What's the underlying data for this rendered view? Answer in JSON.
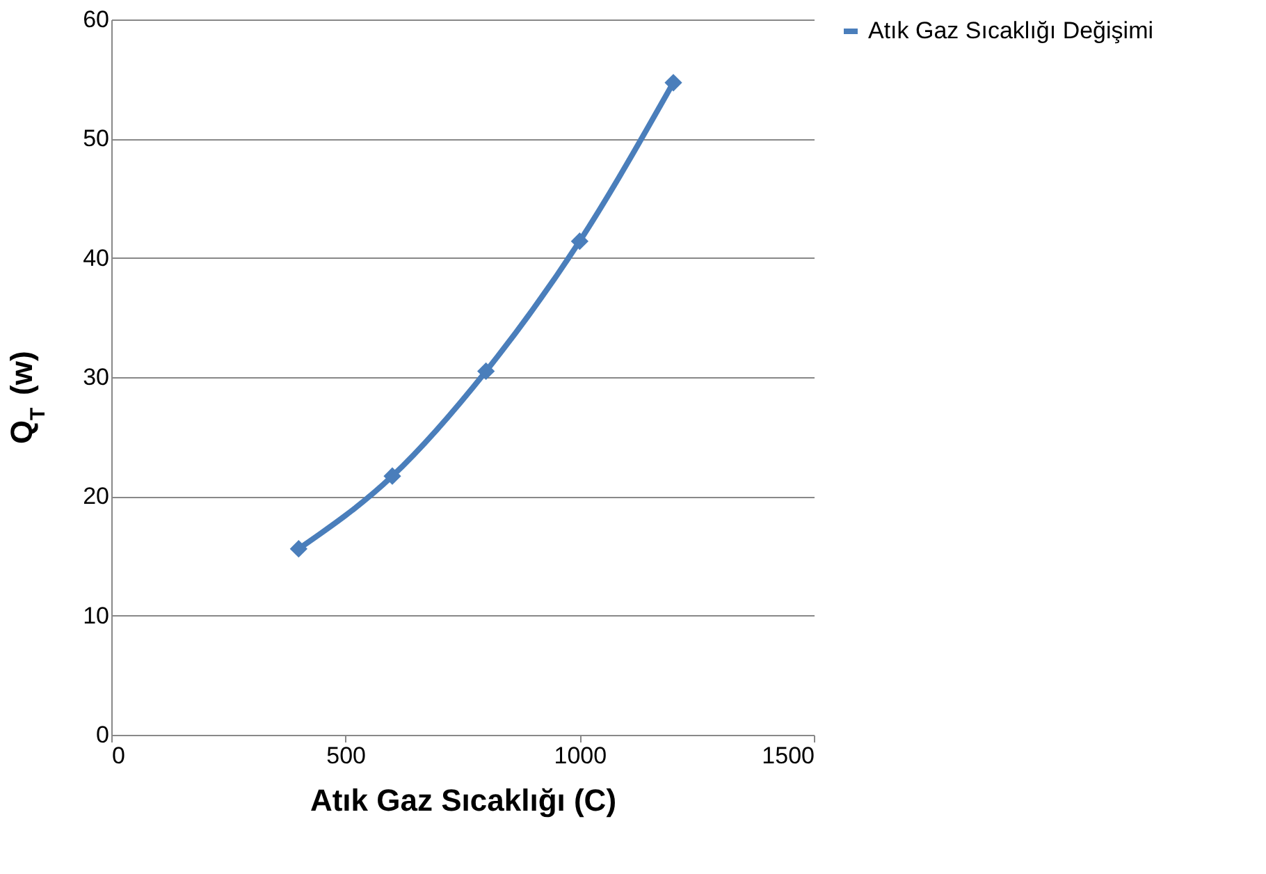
{
  "chart_data": {
    "type": "line",
    "xlabel": "Atık Gaz Sıcaklığı (C)",
    "ylabel": "Q$_{T}$ (w)",
    "x": [
      400,
      600,
      800,
      1000,
      1200
    ],
    "series": [
      {
        "name": "Atık Gaz Sıcaklığı Değişimi",
        "color": "#4a7ebb",
        "values": [
          15.6,
          21.7,
          30.5,
          41.4,
          54.7
        ]
      }
    ],
    "xlim": [
      0,
      1500
    ],
    "xticks": [
      0,
      500,
      1000,
      1500
    ],
    "ylim": [
      0,
      60
    ],
    "yticks": [
      0,
      10,
      20,
      30,
      40,
      50,
      60
    ],
    "grid": "y",
    "legend": "right",
    "marker": "diamond",
    "line_style": "solid"
  }
}
